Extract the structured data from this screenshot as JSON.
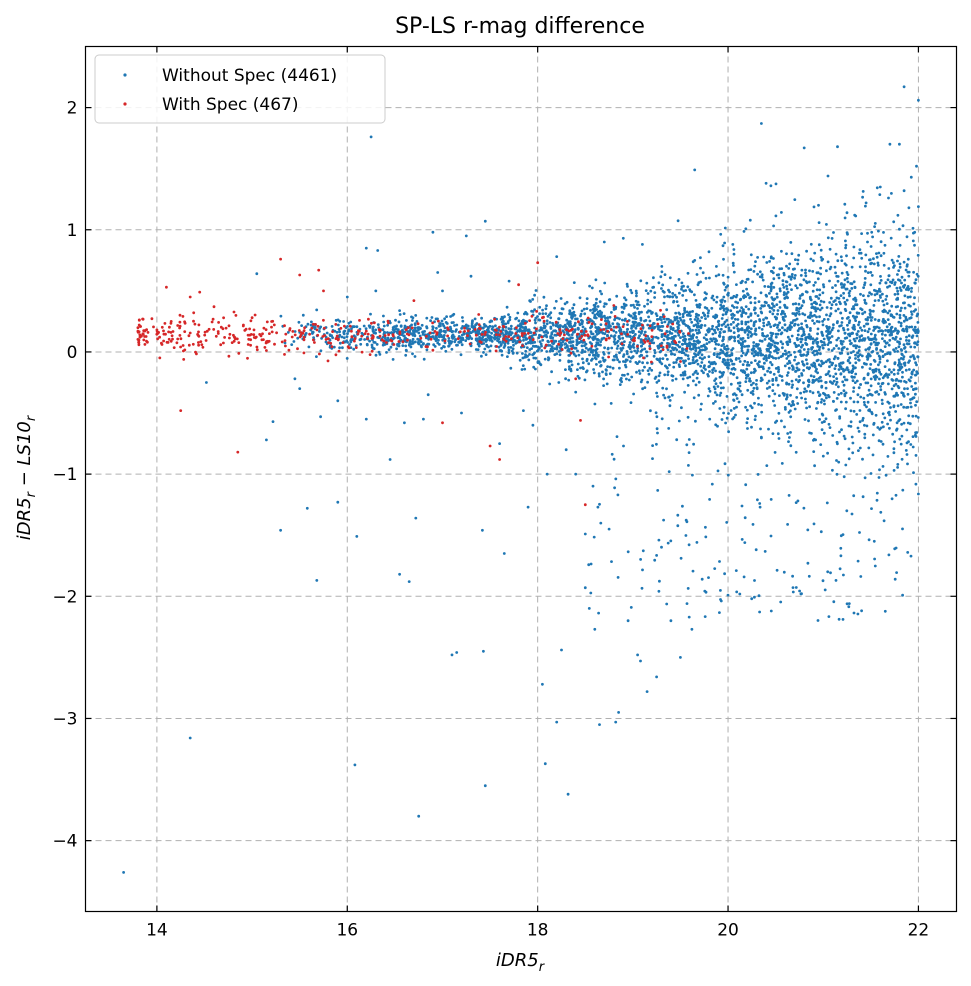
{
  "chart_data": {
    "type": "scatter",
    "title": "SP-LS r-mag difference",
    "xlabel": "iDR5_r",
    "ylabel": "iDR5_r - LS10_r",
    "xlim": [
      13.25,
      22.4
    ],
    "ylim": [
      -4.58,
      2.5
    ],
    "xticks": [
      14,
      16,
      18,
      20,
      22
    ],
    "yticks": [
      2,
      1,
      0,
      -1,
      -2,
      -3,
      -4
    ],
    "xtick_labels": [
      "14",
      "16",
      "18",
      "20",
      "22"
    ],
    "ytick_labels": [
      "2",
      "1",
      "0",
      "−1",
      "−2",
      "−3",
      "−4"
    ],
    "grid": true,
    "legend_position": "top-left",
    "series": [
      {
        "name": "Without Spec (4461)",
        "color": "#1f77b4",
        "count": 4461,
        "points": [
          [
            13.65,
            -4.26
          ],
          [
            14.35,
            -3.16
          ],
          [
            14.52,
            -0.25
          ],
          [
            15.05,
            0.64
          ],
          [
            15.15,
            -0.72
          ],
          [
            15.22,
            -0.57
          ],
          [
            15.3,
            -1.46
          ],
          [
            15.58,
            -1.28
          ],
          [
            15.68,
            -1.87
          ],
          [
            15.72,
            -0.53
          ],
          [
            15.9,
            -1.23
          ],
          [
            16.08,
            -3.38
          ],
          [
            16.1,
            -1.51
          ],
          [
            16.2,
            0.85
          ],
          [
            16.25,
            1.76
          ],
          [
            16.32,
            0.83
          ],
          [
            16.45,
            -0.88
          ],
          [
            16.55,
            -1.82
          ],
          [
            16.65,
            -1.88
          ],
          [
            16.72,
            -1.36
          ],
          [
            16.75,
            -3.8
          ],
          [
            16.9,
            0.98
          ],
          [
            16.95,
            0.65
          ],
          [
            17.1,
            -2.48
          ],
          [
            17.15,
            -2.46
          ],
          [
            17.25,
            0.95
          ],
          [
            17.42,
            -1.46
          ],
          [
            17.45,
            1.07
          ],
          [
            17.43,
            -2.45
          ],
          [
            17.45,
            -3.55
          ],
          [
            17.65,
            -1.65
          ],
          [
            17.85,
            -0.48
          ],
          [
            17.9,
            -1.27
          ],
          [
            18.05,
            -2.72
          ],
          [
            18.08,
            -3.37
          ],
          [
            18.2,
            -3.03
          ],
          [
            18.25,
            -2.44
          ],
          [
            18.32,
            -3.62
          ],
          [
            18.5,
            -1.93
          ],
          [
            18.6,
            -2.27
          ],
          [
            18.65,
            -3.05
          ],
          [
            18.75,
            -1.45
          ],
          [
            18.82,
            -3.03
          ],
          [
            18.85,
            -2.95
          ],
          [
            18.95,
            -2.2
          ],
          [
            19.05,
            -2.48
          ],
          [
            19.08,
            -2.53
          ],
          [
            19.15,
            -2.78
          ],
          [
            19.25,
            -2.66
          ],
          [
            19.4,
            -2.2
          ],
          [
            19.5,
            -2.5
          ],
          [
            19.62,
            -2.27
          ],
          [
            19.65,
            1.49
          ],
          [
            20.0,
            -1.99
          ],
          [
            20.35,
            1.87
          ],
          [
            20.4,
            1.38
          ],
          [
            20.45,
            1.36
          ],
          [
            20.8,
            1.67
          ],
          [
            21.15,
            1.68
          ],
          [
            21.7,
            1.7
          ],
          [
            21.8,
            1.7
          ],
          [
            21.85,
            2.17
          ],
          [
            22.0,
            2.06
          ],
          [
            21.98,
            1.52
          ],
          [
            21.85,
            1.32
          ],
          [
            21.9,
            1.18
          ],
          [
            21.25,
            1.14
          ],
          [
            21.45,
            1.22
          ],
          [
            20.95,
            1.2
          ],
          [
            21.05,
            1.44
          ],
          [
            21.6,
            1.35
          ],
          [
            17.0,
            0.5
          ],
          [
            17.3,
            0.62
          ],
          [
            17.7,
            0.58
          ],
          [
            18.2,
            0.78
          ],
          [
            18.7,
            0.9
          ],
          [
            18.9,
            0.93
          ],
          [
            19.1,
            0.88
          ],
          [
            19.8,
            0.82
          ],
          [
            20.05,
            0.88
          ],
          [
            16.0,
            0.45
          ],
          [
            16.3,
            0.5
          ],
          [
            18.4,
            -1.0
          ],
          [
            18.1,
            -1.0
          ],
          [
            18.3,
            -0.8
          ],
          [
            17.95,
            -0.6
          ],
          [
            17.6,
            -0.75
          ],
          [
            17.2,
            -0.5
          ],
          [
            16.8,
            -0.55
          ],
          [
            16.6,
            -0.58
          ],
          [
            16.2,
            -0.55
          ],
          [
            15.9,
            -0.4
          ],
          [
            15.5,
            -0.3
          ],
          [
            15.45,
            -0.22
          ],
          [
            16.85,
            -0.35
          ]
        ]
      },
      {
        "name": "With Spec (467)",
        "color": "#d62728",
        "count": 467,
        "points": [
          [
            13.8,
            0.17
          ],
          [
            13.82,
            0.14
          ],
          [
            13.85,
            0.27
          ],
          [
            13.9,
            0.08
          ],
          [
            14.0,
            0.18
          ],
          [
            14.1,
            0.53
          ],
          [
            14.15,
            0.25
          ],
          [
            14.25,
            -0.48
          ],
          [
            14.35,
            0.45
          ],
          [
            14.45,
            0.49
          ],
          [
            14.6,
            0.37
          ],
          [
            14.85,
            -0.82
          ],
          [
            15.0,
            0.28
          ],
          [
            15.3,
            0.76
          ],
          [
            15.5,
            0.63
          ],
          [
            15.7,
            0.67
          ],
          [
            15.75,
            0.5
          ],
          [
            16.7,
            0.42
          ],
          [
            17.0,
            -0.58
          ],
          [
            17.5,
            -0.77
          ],
          [
            17.6,
            -0.88
          ],
          [
            17.8,
            0.55
          ],
          [
            18.0,
            0.73
          ],
          [
            18.05,
            0.28
          ],
          [
            18.4,
            -0.22
          ],
          [
            18.45,
            -0.56
          ],
          [
            18.5,
            -1.25
          ],
          [
            18.8,
            0.38
          ],
          [
            19.1,
            0.22
          ],
          [
            19.3,
            0.05
          ]
        ]
      }
    ]
  }
}
